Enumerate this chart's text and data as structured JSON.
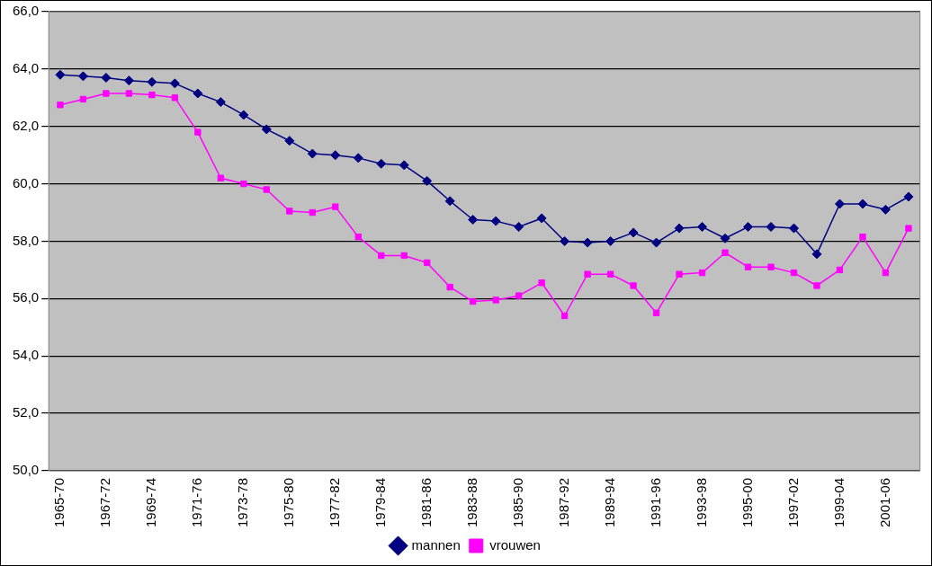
{
  "chart_data": {
    "type": "line",
    "categories": [
      "1965-70",
      null,
      "1967-72",
      null,
      "1969-74",
      null,
      "1971-76",
      null,
      "1973-78",
      null,
      "1975-80",
      null,
      "1977-82",
      null,
      "1979-84",
      null,
      "1981-86",
      null,
      "1983-88",
      null,
      "1985-90",
      null,
      "1987-92",
      null,
      "1989-94",
      null,
      "1991-96",
      null,
      "1993-98",
      null,
      "1995-00",
      null,
      "1997-02",
      null,
      "1999-04",
      null,
      "2001-06",
      null
    ],
    "series": [
      {
        "name": "mannen",
        "color": "#000080",
        "marker": "diamond",
        "values": [
          63.8,
          63.75,
          63.7,
          63.6,
          63.55,
          63.5,
          63.15,
          62.85,
          62.4,
          61.9,
          61.5,
          61.05,
          61.0,
          60.9,
          60.7,
          60.65,
          60.1,
          59.4,
          58.75,
          58.7,
          58.5,
          58.8,
          58.0,
          57.95,
          58.0,
          58.3,
          57.95,
          58.45,
          58.5,
          58.1,
          58.5,
          58.5,
          58.45,
          57.55,
          59.3,
          59.3,
          59.1,
          59.55
        ]
      },
      {
        "name": "vrouwen",
        "color": "#ff00ff",
        "marker": "square",
        "values": [
          62.75,
          62.95,
          63.15,
          63.15,
          63.1,
          63.0,
          61.8,
          60.2,
          60.0,
          59.8,
          59.05,
          59.0,
          59.2,
          58.15,
          57.5,
          57.5,
          57.25,
          56.4,
          55.9,
          55.95,
          56.1,
          56.55,
          55.4,
          56.85,
          56.85,
          56.45,
          55.5,
          56.85,
          56.9,
          57.6,
          57.1,
          57.1,
          56.9,
          56.45,
          57.0,
          58.15,
          56.9,
          58.45
        ]
      }
    ],
    "ylim": [
      50,
      66
    ],
    "yticks": [
      {
        "value": 50,
        "label": "50,0"
      },
      {
        "value": 52,
        "label": "52,0"
      },
      {
        "value": 54,
        "label": "54,0"
      },
      {
        "value": 56,
        "label": "56,0"
      },
      {
        "value": 58,
        "label": "58,0"
      },
      {
        "value": 60,
        "label": "60,0"
      },
      {
        "value": 62,
        "label": "62,0"
      },
      {
        "value": 64,
        "label": "64,0"
      },
      {
        "value": 66,
        "label": "66,0"
      }
    ],
    "grid": "y",
    "legend": "bottom",
    "line_style": "solid"
  }
}
